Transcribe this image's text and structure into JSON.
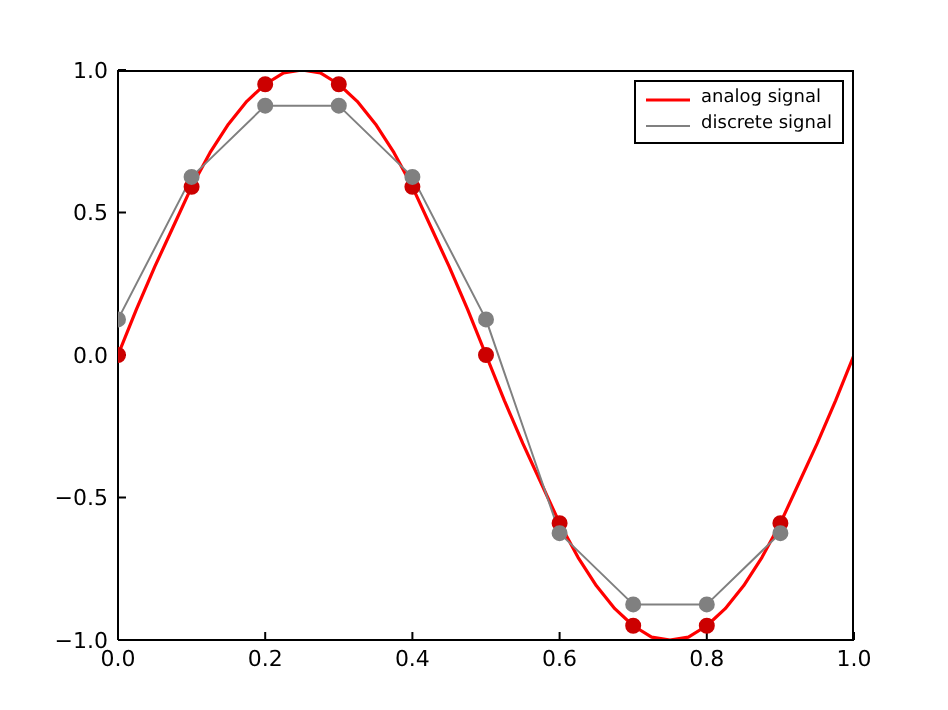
{
  "chart_data": {
    "type": "line",
    "xlim": [
      0,
      1
    ],
    "ylim": [
      -1,
      1
    ],
    "xticks": [
      {
        "value": 0,
        "label": "0.0"
      },
      0.2,
      0.4,
      0.6,
      0.8,
      {
        "value": 1,
        "label": "1.0"
      }
    ],
    "yticks": [
      {
        "value": -1,
        "label": "−1.0"
      },
      -0.5,
      {
        "value": 0,
        "label": "0.0"
      },
      0.5,
      {
        "value": 1,
        "label": "1.0"
      }
    ],
    "grid": false,
    "legend": "top right",
    "series": [
      {
        "name": "analog signal",
        "color": "#ff0000",
        "marker": "none",
        "x": [
          0,
          0.025,
          0.05,
          0.075,
          0.1,
          0.125,
          0.15,
          0.175,
          0.2,
          0.225,
          0.25,
          0.275,
          0.3,
          0.325,
          0.35,
          0.375,
          0.4,
          0.425,
          0.45,
          0.475,
          0.5,
          0.525,
          0.55,
          0.575,
          0.6,
          0.625,
          0.65,
          0.675,
          0.7,
          0.725,
          0.75,
          0.775,
          0.8,
          0.825,
          0.85,
          0.875,
          0.9,
          0.925,
          0.95,
          0.975,
          1
        ],
        "values": [
          0,
          0.16,
          0.31,
          0.45,
          0.59,
          0.71,
          0.81,
          0.89,
          0.95,
          0.99,
          1,
          0.99,
          0.95,
          0.89,
          0.81,
          0.71,
          0.59,
          0.45,
          0.31,
          0.16,
          0,
          -0.16,
          -0.31,
          -0.45,
          -0.59,
          -0.71,
          -0.81,
          -0.89,
          -0.95,
          -0.99,
          -1,
          -0.99,
          -0.95,
          -0.89,
          -0.81,
          -0.71,
          -0.59,
          -0.45,
          -0.31,
          -0.16,
          0
        ]
      },
      {
        "type": "scatter",
        "color": "#cc0000",
        "marker": "circle",
        "x": [
          0,
          0.1,
          0.2,
          0.3,
          0.4,
          0.5,
          0.6,
          0.7,
          0.8,
          0.9
        ],
        "values": [
          0,
          0.59,
          0.95,
          0.95,
          0.59,
          0,
          -0.59,
          -0.95,
          -0.95,
          -0.59
        ]
      },
      {
        "name": "discrete signal",
        "color": "#808080",
        "marker": "circle",
        "x": [
          0,
          0.1,
          0.2,
          0.3,
          0.4,
          0.5,
          0.6,
          0.7,
          0.8,
          0.9
        ],
        "values": [
          0.125,
          0.625,
          0.875,
          0.875,
          0.625,
          0.125,
          -0.625,
          -0.875,
          -0.875,
          -0.625
        ]
      }
    ]
  }
}
